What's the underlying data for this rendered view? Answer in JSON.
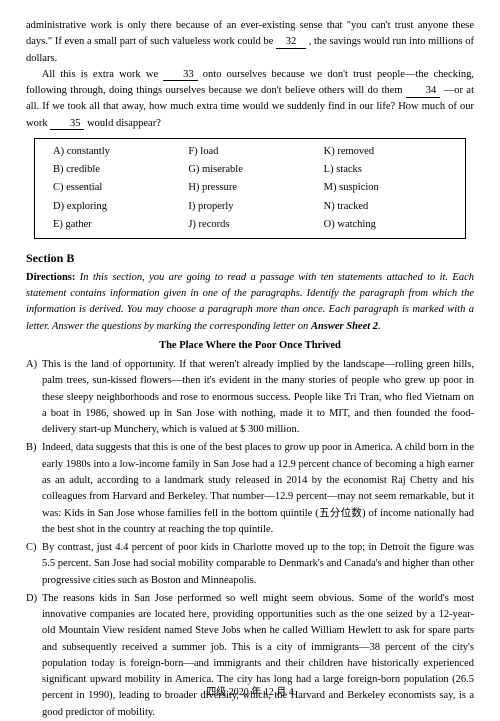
{
  "cloze": {
    "p1a": "administrative work is only there because of an ever-existing sense that \"you can't trust anyone these days.\" If even a small part of such valueless work could be ",
    "p1_blank1": "32",
    "p1b": " , the savings would run into millions of dollars.",
    "p2a": "All this is extra work we ",
    "p2_blank2": "33",
    "p2b": " onto ourselves because we don't trust people—the checking, following through, doing things ourselves because we don't believe others will do them ",
    "p2_blank3": "34",
    "p2c": " —or at all. If we took all that away, how much extra time would we suddenly find in our life? How much of our work ",
    "p2_blank4": "35",
    "p2d": " would disappear?"
  },
  "options": [
    [
      "A) constantly",
      "F) load",
      "K) removed"
    ],
    [
      "B) credible",
      "G) miserable",
      "L) stacks"
    ],
    [
      "C) essential",
      "H) pressure",
      "M) suspicion"
    ],
    [
      "D) exploring",
      "I) properly",
      "N) tracked"
    ],
    [
      "E) gather",
      "J) records",
      "O) watching"
    ]
  ],
  "sectionB": {
    "heading": "Section B",
    "directions_label": "Directions: ",
    "directions_text": "In this section, you are going to read a passage with ten statements attached to it. Each statement contains information given in one of the paragraphs. Identify the paragraph from which the information is derived. You may choose a paragraph more than once. Each paragraph is marked with a letter. Answer the questions by marking the corresponding letter on ",
    "directions_bold": "Answer Sheet 2",
    "directions_end": ".",
    "title": "The Place Where the Poor Once Thrived",
    "items": [
      {
        "label": "A)",
        "text": "This is the land of opportunity. If that weren't already implied by the landscape—rolling green hills, palm trees, sun-kissed flowers—then it's evident in the many stories of people who grew up poor in these sleepy neighborhoods and rose to enormous success. People like Tri Tran, who fled Vietnam on a boat in 1986, showed up in San Jose with nothing, made it to MIT, and then founded the food-delivery start-up Munchery, which is valued at $ 300 million."
      },
      {
        "label": "B)",
        "text": "Indeed, data suggests that this is one of the best places to grow up poor in America. A child born in the early 1980s into a low-income family in San Jose had a 12.9 percent chance of becoming a high earner as an adult, according to a landmark study released in 2014 by the economist Raj Chetty and his colleagues from Harvard and Berkeley. That number—12.9 percent—may not seem remarkable, but it was: Kids in San Jose whose families fell in the bottom quintile (五分位数) of income nationally had the best shot in the country at reaching the top quintile."
      },
      {
        "label": "C)",
        "text": "By contrast, just 4.4 percent of poor kids in Charlotte moved up to the top; in Detroit the figure was 5.5 percent. San Jose had social mobility comparable to Denmark's and Canada's and higher than other progressive cities such as Boston and Minneapolis."
      },
      {
        "label": "D)",
        "text": "The reasons kids in San Jose performed so well might seem obvious. Some of the world's most innovative companies are located here, providing opportunities such as the one seized by a 12-year-old Mountain View resident named Steve Jobs when he called William Hewlett to ask for spare parts and subsequently received a summer job. This is a city of immigrants—38 percent of the city's population today is foreign-born—and immigrants and their children have historically experienced significant upward mobility in America. The city has long had a large foreign-born population (26.5 percent in 1990), leading to broader diversity, which, the Harvard and Berkeley economists say, is a good predictor of mobility."
      }
    ]
  },
  "footer": "四级 2020 年 12 月   4"
}
